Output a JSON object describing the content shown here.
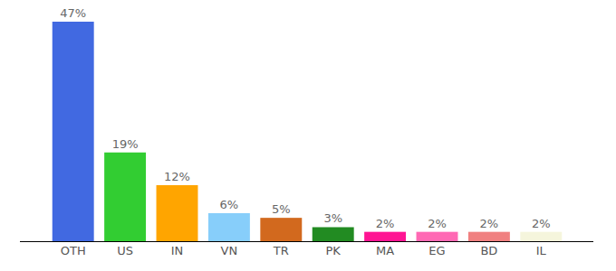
{
  "chart_data": {
    "type": "bar",
    "categories": [
      "OTH",
      "US",
      "IN",
      "VN",
      "TR",
      "PK",
      "MA",
      "EG",
      "BD",
      "IL"
    ],
    "values": [
      47,
      19,
      12,
      6,
      5,
      3,
      2,
      2,
      2,
      2
    ],
    "value_labels": [
      "47%",
      "19%",
      "12%",
      "6%",
      "5%",
      "3%",
      "2%",
      "2%",
      "2%",
      "2%"
    ],
    "colors": [
      "#4169e1",
      "#32cd32",
      "#ffa500",
      "#87cefa",
      "#d2691e",
      "#228b22",
      "#ff1493",
      "#ff69b4",
      "#f08080",
      "#f5f5dc"
    ],
    "data_labels": true,
    "tick_labels": "x"
  }
}
